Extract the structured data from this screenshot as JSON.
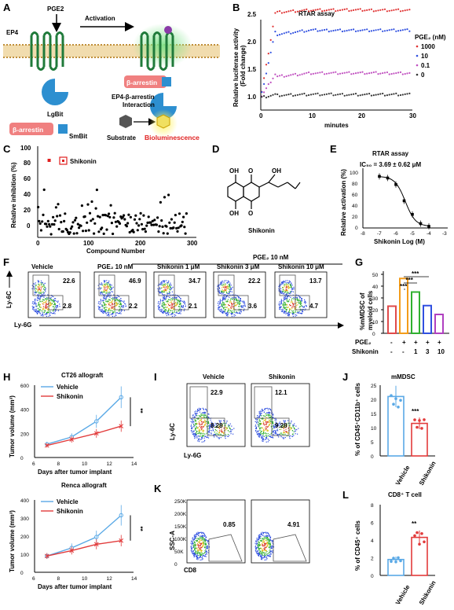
{
  "panels": {
    "A": {
      "label": "A",
      "pge2": "PGE2",
      "ep4": "EP4",
      "activation": "Activation",
      "lgbit": "LgBit",
      "barrestin": "β-arrestin",
      "smbit": "SmBit",
      "interaction_1": "EP4-β-arrestin",
      "interaction_2": "Interaction",
      "substrate": "Substrate",
      "bioluminescence": "Bioluminescence"
    },
    "B": {
      "label": "B",
      "title": "RTAR assay",
      "xlabel": "minutes",
      "ylabel_1": "Relative luciferase activity",
      "ylabel_2": "(Fold change)",
      "legend_title": "PGE₂ (nM)",
      "legend": [
        "1000",
        "10",
        "0.1",
        "0"
      ],
      "yticks": [
        "1.0",
        "1.5",
        "2.0",
        "2.5"
      ],
      "xticks": [
        "0",
        "10",
        "20",
        "30"
      ]
    },
    "C": {
      "label": "C",
      "legend": "Shikonin",
      "ylabel": "Relative inhibition (%)",
      "xlabel": "Compound Number",
      "yticks": [
        "0",
        "20",
        "40",
        "60",
        "80",
        "100"
      ],
      "xticks": [
        "0",
        "100",
        "200",
        "300"
      ]
    },
    "D": {
      "label": "D",
      "caption": "Shikonin"
    },
    "E": {
      "label": "E",
      "title": "RTAR assay",
      "ic50": "IC₅₀ = 3.69 ± 0.62 μM",
      "ylabel": "Relative activation (%)",
      "xlabel": "Shikonin Log (M)",
      "yticks": [
        "0",
        "20",
        "40",
        "60",
        "80",
        "100"
      ],
      "xticks": [
        "-8",
        "-7",
        "-6",
        "-5",
        "-4",
        "-3"
      ]
    },
    "F": {
      "label": "F",
      "header": "PGE₂ 10 nM",
      "ylabel": "Ly-6C",
      "xlabel": "Ly-6G",
      "plots": [
        {
          "title": "Vehicle",
          "upper": "22.6",
          "lower": "2.8"
        },
        {
          "title": "PGE₂ 10 nM",
          "upper": "46.9",
          "lower": "2.2"
        },
        {
          "title": "Shikonin 1 μM",
          "upper": "34.7",
          "lower": "2.1"
        },
        {
          "title": "Shikonin 3 μM",
          "upper": "22.2",
          "lower": "3.6"
        },
        {
          "title": "Shikonin 10 μM",
          "upper": "13.7",
          "lower": "4.7"
        }
      ]
    },
    "G": {
      "label": "G",
      "ylabel_1": "%mMDSC of",
      "ylabel_2": "myeloid cells",
      "row1_label": "PGE₂",
      "row2_label": "Shikonin",
      "row1": [
        "-",
        "+",
        "+",
        "+",
        "+"
      ],
      "row2": [
        "-",
        "-",
        "1",
        "3",
        "10"
      ],
      "sig": [
        "***",
        "***",
        "***"
      ],
      "yticks": [
        "0",
        "10",
        "20",
        "30",
        "40",
        "50"
      ]
    },
    "H1": {
      "label": "H",
      "title": "CT26 allograft",
      "ylabel_1": "Tumor volume (mm³)",
      "xlabel": "Days after tumor implant",
      "sig": "**",
      "yticks": [
        "0",
        "200",
        "400",
        "600"
      ],
      "xticks": [
        "6",
        "8",
        "10",
        "12",
        "14"
      ]
    },
    "H2": {
      "title": "Renca allograft",
      "ylabel_1": "Tumor volume (mm³)",
      "xlabel": "Days after tumor implant",
      "sig": "**",
      "yticks": [
        "0",
        "100",
        "200",
        "300",
        "400"
      ],
      "xticks": [
        "6",
        "8",
        "10",
        "12",
        "14"
      ]
    },
    "I": {
      "label": "I",
      "titles": [
        "Vehicle",
        "Shikonin"
      ],
      "ylabel": "Ly-6C",
      "xlabel": "Ly-6G",
      "vals": [
        [
          "22.9",
          "8.28"
        ],
        [
          "12.1",
          "9.28"
        ]
      ]
    },
    "J": {
      "label": "J",
      "title": "mMDSC",
      "ylabel": "% of CD45⁺CD11b⁺ cells",
      "sig": "***",
      "cats": [
        "Vehicle",
        "Shikonin"
      ],
      "yticks": [
        "0",
        "5",
        "10",
        "15",
        "20",
        "25"
      ]
    },
    "K": {
      "label": "K",
      "ylabel": "SSC-A",
      "xlabel": "CD8",
      "vals": [
        "0.85",
        "4.91"
      ],
      "yticks": [
        "250K",
        "200K",
        "150K",
        "100K",
        "50K",
        "0"
      ]
    },
    "L": {
      "label": "L",
      "title": "CD8⁺ T cell",
      "ylabel": "% of CD45⁺ cells",
      "sig": "**",
      "cats": [
        "Vehicle",
        "Shikonin"
      ],
      "yticks": [
        "0",
        "2",
        "4",
        "6",
        "8"
      ]
    }
  },
  "legend_common": {
    "vehicle": "Vehicle",
    "shikonin": "Shikonin"
  },
  "colors": {
    "vehicle_line": "#5aa9e6",
    "shikonin_line": "#e23b3b",
    "b_1000": "#e03030",
    "b_10": "#3050e0",
    "b_01": "#c050c0",
    "b_0": "#333333"
  },
  "chart_data": [
    {
      "type": "scatter",
      "title": "RTAR assay",
      "xlabel": "minutes",
      "ylabel": "Relative luciferase activity (Fold change)",
      "xlim": [
        0,
        30
      ],
      "ylim": [
        0.9,
        2.6
      ],
      "series": [
        {
          "name": "1000",
          "x": [
            0,
            1,
            2,
            3,
            5,
            10,
            20,
            30
          ],
          "y": [
            1.0,
            1.6,
            2.2,
            2.35,
            2.38,
            2.4,
            2.42,
            2.43
          ]
        },
        {
          "name": "10",
          "x": [
            0,
            1,
            2,
            3,
            5,
            10,
            20,
            30
          ],
          "y": [
            1.0,
            1.45,
            1.85,
            1.95,
            2.0,
            2.05,
            2.08,
            2.1
          ]
        },
        {
          "name": "0.1",
          "x": [
            0,
            1,
            2,
            3,
            5,
            10,
            20,
            30
          ],
          "y": [
            1.0,
            1.15,
            1.25,
            1.3,
            1.32,
            1.35,
            1.38,
            1.4
          ]
        },
        {
          "name": "0",
          "x": [
            0,
            1,
            2,
            3,
            5,
            10,
            20,
            30
          ],
          "y": [
            1.0,
            1.0,
            1.02,
            1.03,
            1.03,
            1.04,
            1.05,
            1.05
          ]
        }
      ]
    },
    {
      "type": "scatter",
      "ylabel": "Relative inhibition (%)",
      "xlabel": "Compound Number",
      "xlim": [
        0,
        300
      ],
      "ylim": [
        -10,
        100
      ]
    },
    {
      "type": "line",
      "title": "RTAR assay",
      "xlabel": "Shikonin Log (M)",
      "ylabel": "Relative activation (%)",
      "xlim": [
        -8,
        -3
      ],
      "ylim": [
        0,
        110
      ],
      "x": [
        -7,
        -6.5,
        -6,
        -5.5,
        -5,
        -4.5,
        -4
      ],
      "y": [
        95,
        92,
        80,
        50,
        25,
        8,
        3
      ]
    },
    {
      "type": "bar",
      "ylabel": "%mMDSC of myeloid cells",
      "ylim": [
        0,
        50
      ],
      "categories": [
        "-/-",
        "+/-",
        "+/1",
        "+/3",
        "+/10"
      ],
      "values": [
        23,
        46.5,
        35,
        23.5,
        16
      ]
    },
    {
      "type": "line",
      "title": "CT26 allograft",
      "xlabel": "Days after tumor implant",
      "ylabel": "Tumor volume (mm³)",
      "xlim": [
        6,
        14
      ],
      "ylim": [
        0,
        600
      ],
      "x": [
        7,
        9,
        11,
        13
      ],
      "series": [
        {
          "name": "Vehicle",
          "values": [
            110,
            170,
            300,
            500
          ]
        },
        {
          "name": "Shikonin",
          "values": [
            100,
            150,
            200,
            260
          ]
        }
      ]
    },
    {
      "type": "line",
      "title": "Renca allograft",
      "xlabel": "Days after tumor implant",
      "ylabel": "Tumor volume (mm³)",
      "xlim": [
        6,
        14
      ],
      "ylim": [
        0,
        400
      ],
      "x": [
        7,
        9,
        11,
        13
      ],
      "series": [
        {
          "name": "Vehicle",
          "values": [
            90,
            135,
            195,
            315
          ]
        },
        {
          "name": "Shikonin",
          "values": [
            90,
            120,
            155,
            175
          ]
        }
      ]
    },
    {
      "type": "bar",
      "title": "mMDSC",
      "ylabel": "% of CD45⁺CD11b⁺ cells",
      "ylim": [
        0,
        25
      ],
      "categories": [
        "Vehicle",
        "Shikonin"
      ],
      "values": [
        21,
        11.5
      ]
    },
    {
      "type": "bar",
      "title": "CD8⁺ T cell",
      "ylabel": "% of CD45⁺ cells",
      "ylim": [
        0,
        8
      ],
      "categories": [
        "Vehicle",
        "Shikonin"
      ],
      "values": [
        1.8,
        4.3
      ]
    }
  ]
}
